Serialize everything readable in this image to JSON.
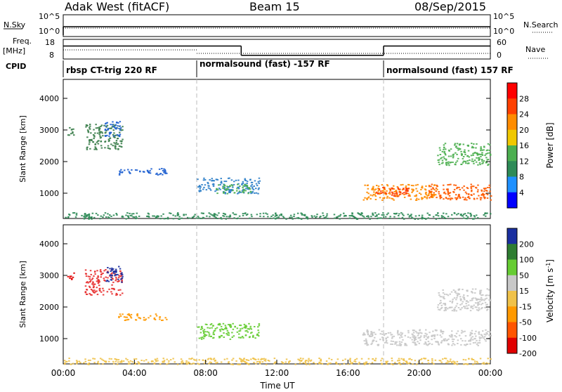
{
  "header": {
    "station": "Adak West (fitACF)",
    "beam": "Beam 15",
    "date": "08/Sep/2015"
  },
  "top_panels": {
    "nsky_label": "N.Sky",
    "nsky_ticks": [
      "10^5",
      "10^0"
    ],
    "nsearch_label": "N.Search",
    "nsearch_ticks": [
      "10^5",
      "10^0"
    ],
    "freq_label": "Freq.",
    "freq_unit": "[MHz]",
    "freq_ticks": [
      "18",
      "8"
    ],
    "nave_label": "Nave",
    "nave_ticks": [
      "60",
      "0"
    ],
    "cpid_label": "CPID",
    "cpid_segments": [
      {
        "label": "rbsp CT-trig 220 RF",
        "start": 0,
        "end": 7.5
      },
      {
        "label": "normalsound (fast) -157 RF",
        "start": 7.5,
        "end": 18.0
      },
      {
        "label": "normalsound (fast) 157 RF",
        "start": 18.0,
        "end": 24.0
      }
    ],
    "freq_steps": [
      {
        "start": 0,
        "end": 10.0,
        "level": 0.75
      },
      {
        "start": 10.0,
        "end": 18.0,
        "level": 0.15
      },
      {
        "start": 18.0,
        "end": 24.0,
        "level": 0.75
      }
    ]
  },
  "chart_data": [
    {
      "type": "heatmap",
      "name": "power",
      "ylabel": "Slant Range [km]",
      "yticks": [
        "4000",
        "3000",
        "2000",
        "1000"
      ],
      "ylim": [
        200,
        4600
      ],
      "xlim": [
        0,
        24
      ],
      "colorbar_label": "Power [dB]",
      "colorbar_ticks": [
        "28",
        "24",
        "20",
        "16",
        "12",
        "8",
        "4"
      ],
      "colorbar_colors": [
        "#ff0000",
        "#ff4000",
        "#ff8c00",
        "#f0c800",
        "#4caf50",
        "#2e8b57",
        "#1e90ff",
        "#0000ff"
      ],
      "regions": [
        {
          "t0": 0.2,
          "t1": 0.6,
          "r0": 2800,
          "r1": 3100,
          "color": "#3a7d4a"
        },
        {
          "t0": 1.2,
          "t1": 3.3,
          "r0": 2400,
          "r1": 3200,
          "color": "#3a7d4a"
        },
        {
          "t0": 2.3,
          "t1": 3.3,
          "r0": 2800,
          "r1": 3300,
          "color": "#1e5fd0"
        },
        {
          "t0": 3.0,
          "t1": 5.8,
          "r0": 1600,
          "r1": 1800,
          "color": "#1e5fd0"
        },
        {
          "t0": 7.5,
          "t1": 11.0,
          "r0": 1000,
          "r1": 1500,
          "color": "#2e7fc9"
        },
        {
          "t0": 8.5,
          "t1": 10.5,
          "r0": 1000,
          "r1": 1300,
          "color": "#4caf50"
        },
        {
          "t0": 16.8,
          "t1": 21.0,
          "r0": 800,
          "r1": 1300,
          "color": "#ff8c00"
        },
        {
          "t0": 17.5,
          "t1": 19.5,
          "r0": 900,
          "r1": 1200,
          "color": "#ff3a00"
        },
        {
          "t0": 20.5,
          "t1": 24.0,
          "r0": 800,
          "r1": 1300,
          "color": "#ff5a00"
        },
        {
          "t0": 21.0,
          "t1": 24.0,
          "r0": 1900,
          "r1": 2600,
          "color": "#4caf50"
        },
        {
          "t0": 0,
          "t1": 24,
          "r0": 200,
          "r1": 400,
          "color": "#2e8b57"
        }
      ]
    },
    {
      "type": "heatmap",
      "name": "velocity",
      "ylabel": "Slant Range [km]",
      "yticks": [
        "4000",
        "3000",
        "2000",
        "1000"
      ],
      "ylim": [
        200,
        4600
      ],
      "xlim": [
        0,
        24
      ],
      "xlabel": "Time UT",
      "xticks": [
        "00:00",
        "04:00",
        "08:00",
        "12:00",
        "16:00",
        "20:00",
        "00:00"
      ],
      "colorbar_label": "Velocity [m s",
      "colorbar_label_sup": "-1",
      "colorbar_label_end": "]",
      "colorbar_ticks": [
        "200",
        "100",
        "50",
        "15",
        "-15",
        "-50",
        "-100",
        "-200"
      ],
      "colorbar_colors": [
        "#1a2fa0",
        "#2e7d32",
        "#66cc33",
        "#c8c8c8",
        "#f0c24a",
        "#ff9900",
        "#ff5500",
        "#e00000"
      ],
      "regions": [
        {
          "t0": 0.2,
          "t1": 0.6,
          "r0": 2800,
          "r1": 3100,
          "color": "#e00000"
        },
        {
          "t0": 1.2,
          "t1": 3.3,
          "r0": 2400,
          "r1": 3200,
          "color": "#e83030"
        },
        {
          "t0": 2.3,
          "t1": 3.3,
          "r0": 2800,
          "r1": 3300,
          "color": "#1a2fa0"
        },
        {
          "t0": 3.0,
          "t1": 5.8,
          "r0": 1600,
          "r1": 1800,
          "color": "#ff9900"
        },
        {
          "t0": 7.5,
          "t1": 11.0,
          "r0": 1000,
          "r1": 1500,
          "color": "#66cc33"
        },
        {
          "t0": 16.8,
          "t1": 24.0,
          "r0": 800,
          "r1": 1300,
          "color": "#c8c8c8"
        },
        {
          "t0": 21.0,
          "t1": 24.0,
          "r0": 1900,
          "r1": 2600,
          "color": "#c8c8c8"
        },
        {
          "t0": 0,
          "t1": 24,
          "r0": 200,
          "r1": 400,
          "color": "#f0c24a"
        }
      ]
    }
  ]
}
